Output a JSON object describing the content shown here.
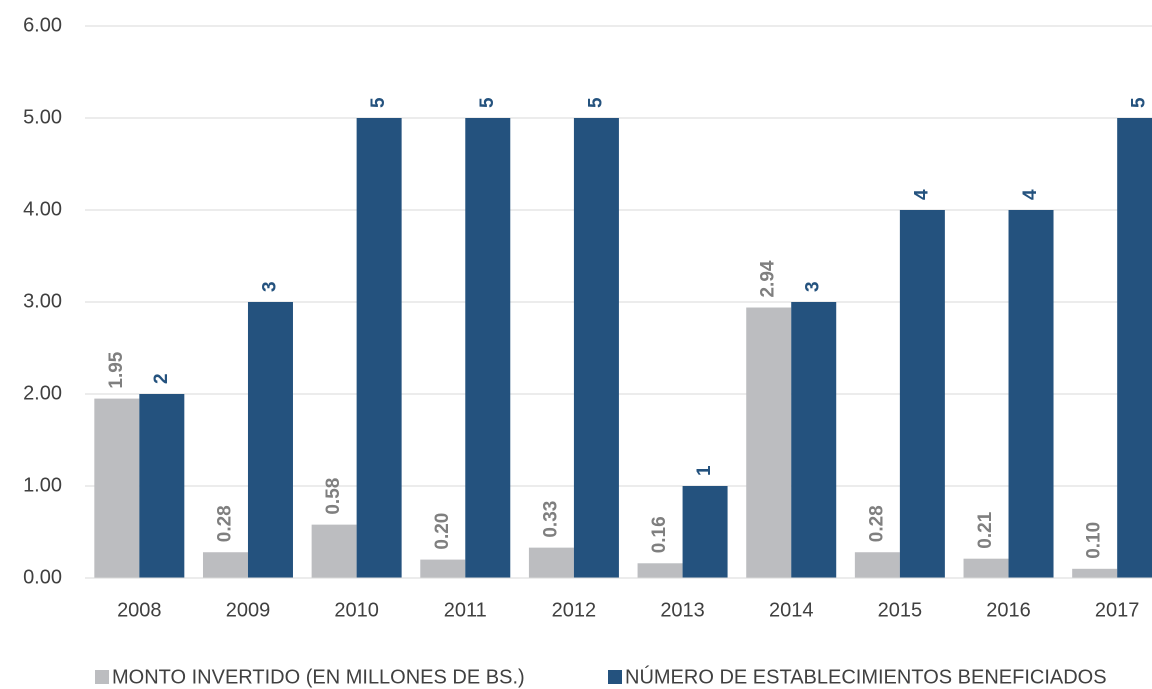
{
  "chart_data": {
    "type": "bar",
    "categories": [
      "2008",
      "2009",
      "2010",
      "2011",
      "2012",
      "2013",
      "2014",
      "2015",
      "2016",
      "2017"
    ],
    "series": [
      {
        "name": "MONTO INVERTIDO (EN MILLONES DE BS.)",
        "color": "#bcbdc0",
        "values": [
          1.95,
          0.28,
          0.58,
          0.2,
          0.33,
          0.16,
          2.94,
          0.28,
          0.21,
          0.1
        ],
        "value_labels": [
          "1.95",
          "0.28",
          "0.58",
          "0.20",
          "0.33",
          "0.16",
          "2.94",
          "0.28",
          "0.21",
          "0.10"
        ],
        "label_color": "#7f7f7f"
      },
      {
        "name": "NÚMERO DE ESTABLECIMIENTOS BENEFICIADOS",
        "color": "#24527e",
        "values": [
          2,
          3,
          5,
          5,
          5,
          1,
          3,
          4,
          4,
          5
        ],
        "label_color": "#24527e"
      }
    ],
    "ylim": [
      0,
      6
    ],
    "yticks": [
      {
        "value": 0,
        "label": "0.00"
      },
      {
        "value": 1,
        "label": "1.00"
      },
      {
        "value": 2,
        "label": "2.00"
      },
      {
        "value": 3,
        "label": "3.00"
      },
      {
        "value": 4,
        "label": "4.00"
      },
      {
        "value": 5,
        "label": "5.00"
      },
      {
        "value": 6,
        "label": "6.00"
      }
    ],
    "grid": true,
    "legend": "bottom"
  }
}
